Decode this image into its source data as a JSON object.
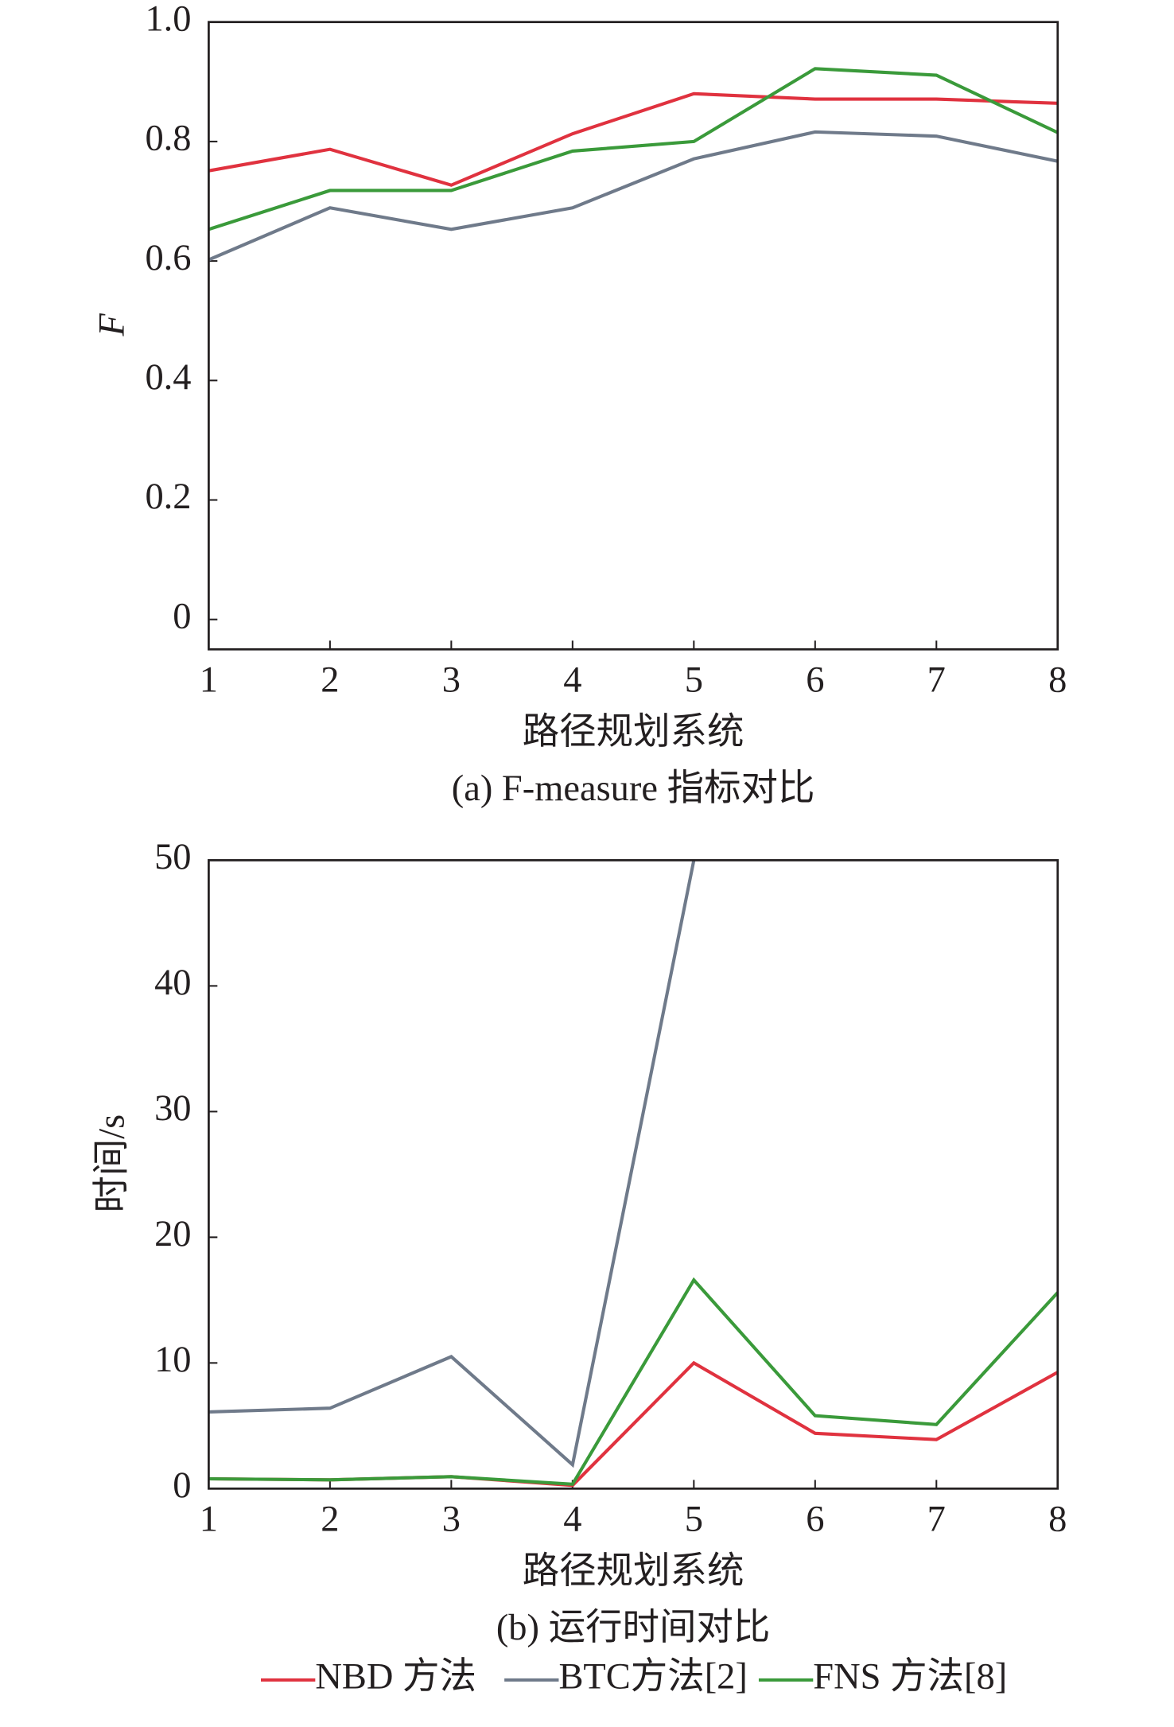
{
  "chart_data": [
    {
      "type": "line",
      "x": [
        1,
        2,
        3,
        4,
        5,
        6,
        7,
        8
      ],
      "xlim": [
        1,
        8
      ],
      "xticks": [
        1,
        2,
        3,
        4,
        5,
        6,
        7,
        8
      ],
      "ylim": [
        -0.05,
        1.0
      ],
      "yticks": [
        0,
        0.2,
        0.4,
        0.6,
        0.8,
        {
          "value": 1,
          "label": "1.0"
        }
      ],
      "y_label": "F",
      "x_label": "路径规划系统",
      "caption": "(a) F-measure 指标对比",
      "series": [
        {
          "color": "#e0323f",
          "values": [
            0.751,
            0.787,
            0.727,
            0.813,
            0.88,
            0.871,
            0.871,
            0.864
          ]
        },
        {
          "color": "#6f7a8a",
          "values": [
            0.602,
            0.689,
            0.653,
            0.689,
            0.771,
            0.816,
            0.809,
            0.767
          ]
        },
        {
          "color": "#3a9a3a",
          "values": [
            0.653,
            0.718,
            0.718,
            0.784,
            0.8,
            0.922,
            0.911,
            0.815
          ]
        }
      ]
    },
    {
      "type": "line",
      "x": [
        1,
        2,
        3,
        4,
        5,
        6,
        7,
        8
      ],
      "xlim": [
        1,
        8
      ],
      "xticks": [
        1,
        2,
        3,
        4,
        5,
        6,
        7,
        8
      ],
      "ylim": [
        0,
        50
      ],
      "yticks": [
        0,
        10,
        20,
        30,
        40,
        50
      ],
      "y_label": "时间/s",
      "x_label": "路径规划系统",
      "caption": "(b) 运行时间对比",
      "series": [
        {
          "name": "NBD 方法",
          "color": "#e0323f",
          "values": [
            0.78,
            0.7,
            0.95,
            0.26,
            10.0,
            4.4,
            3.9,
            9.26
          ]
        },
        {
          "name": "BTC方法[2]",
          "color": "#6f7a8a",
          "values": [
            6.1,
            6.4,
            10.5,
            1.9,
            50,
            null,
            null,
            null
          ]
        },
        {
          "name": "FNS 方法[8]",
          "color": "#3a9a3a",
          "values": [
            0.78,
            0.7,
            0.95,
            0.35,
            16.6,
            5.8,
            5.1,
            15.6
          ]
        }
      ]
    }
  ]
}
